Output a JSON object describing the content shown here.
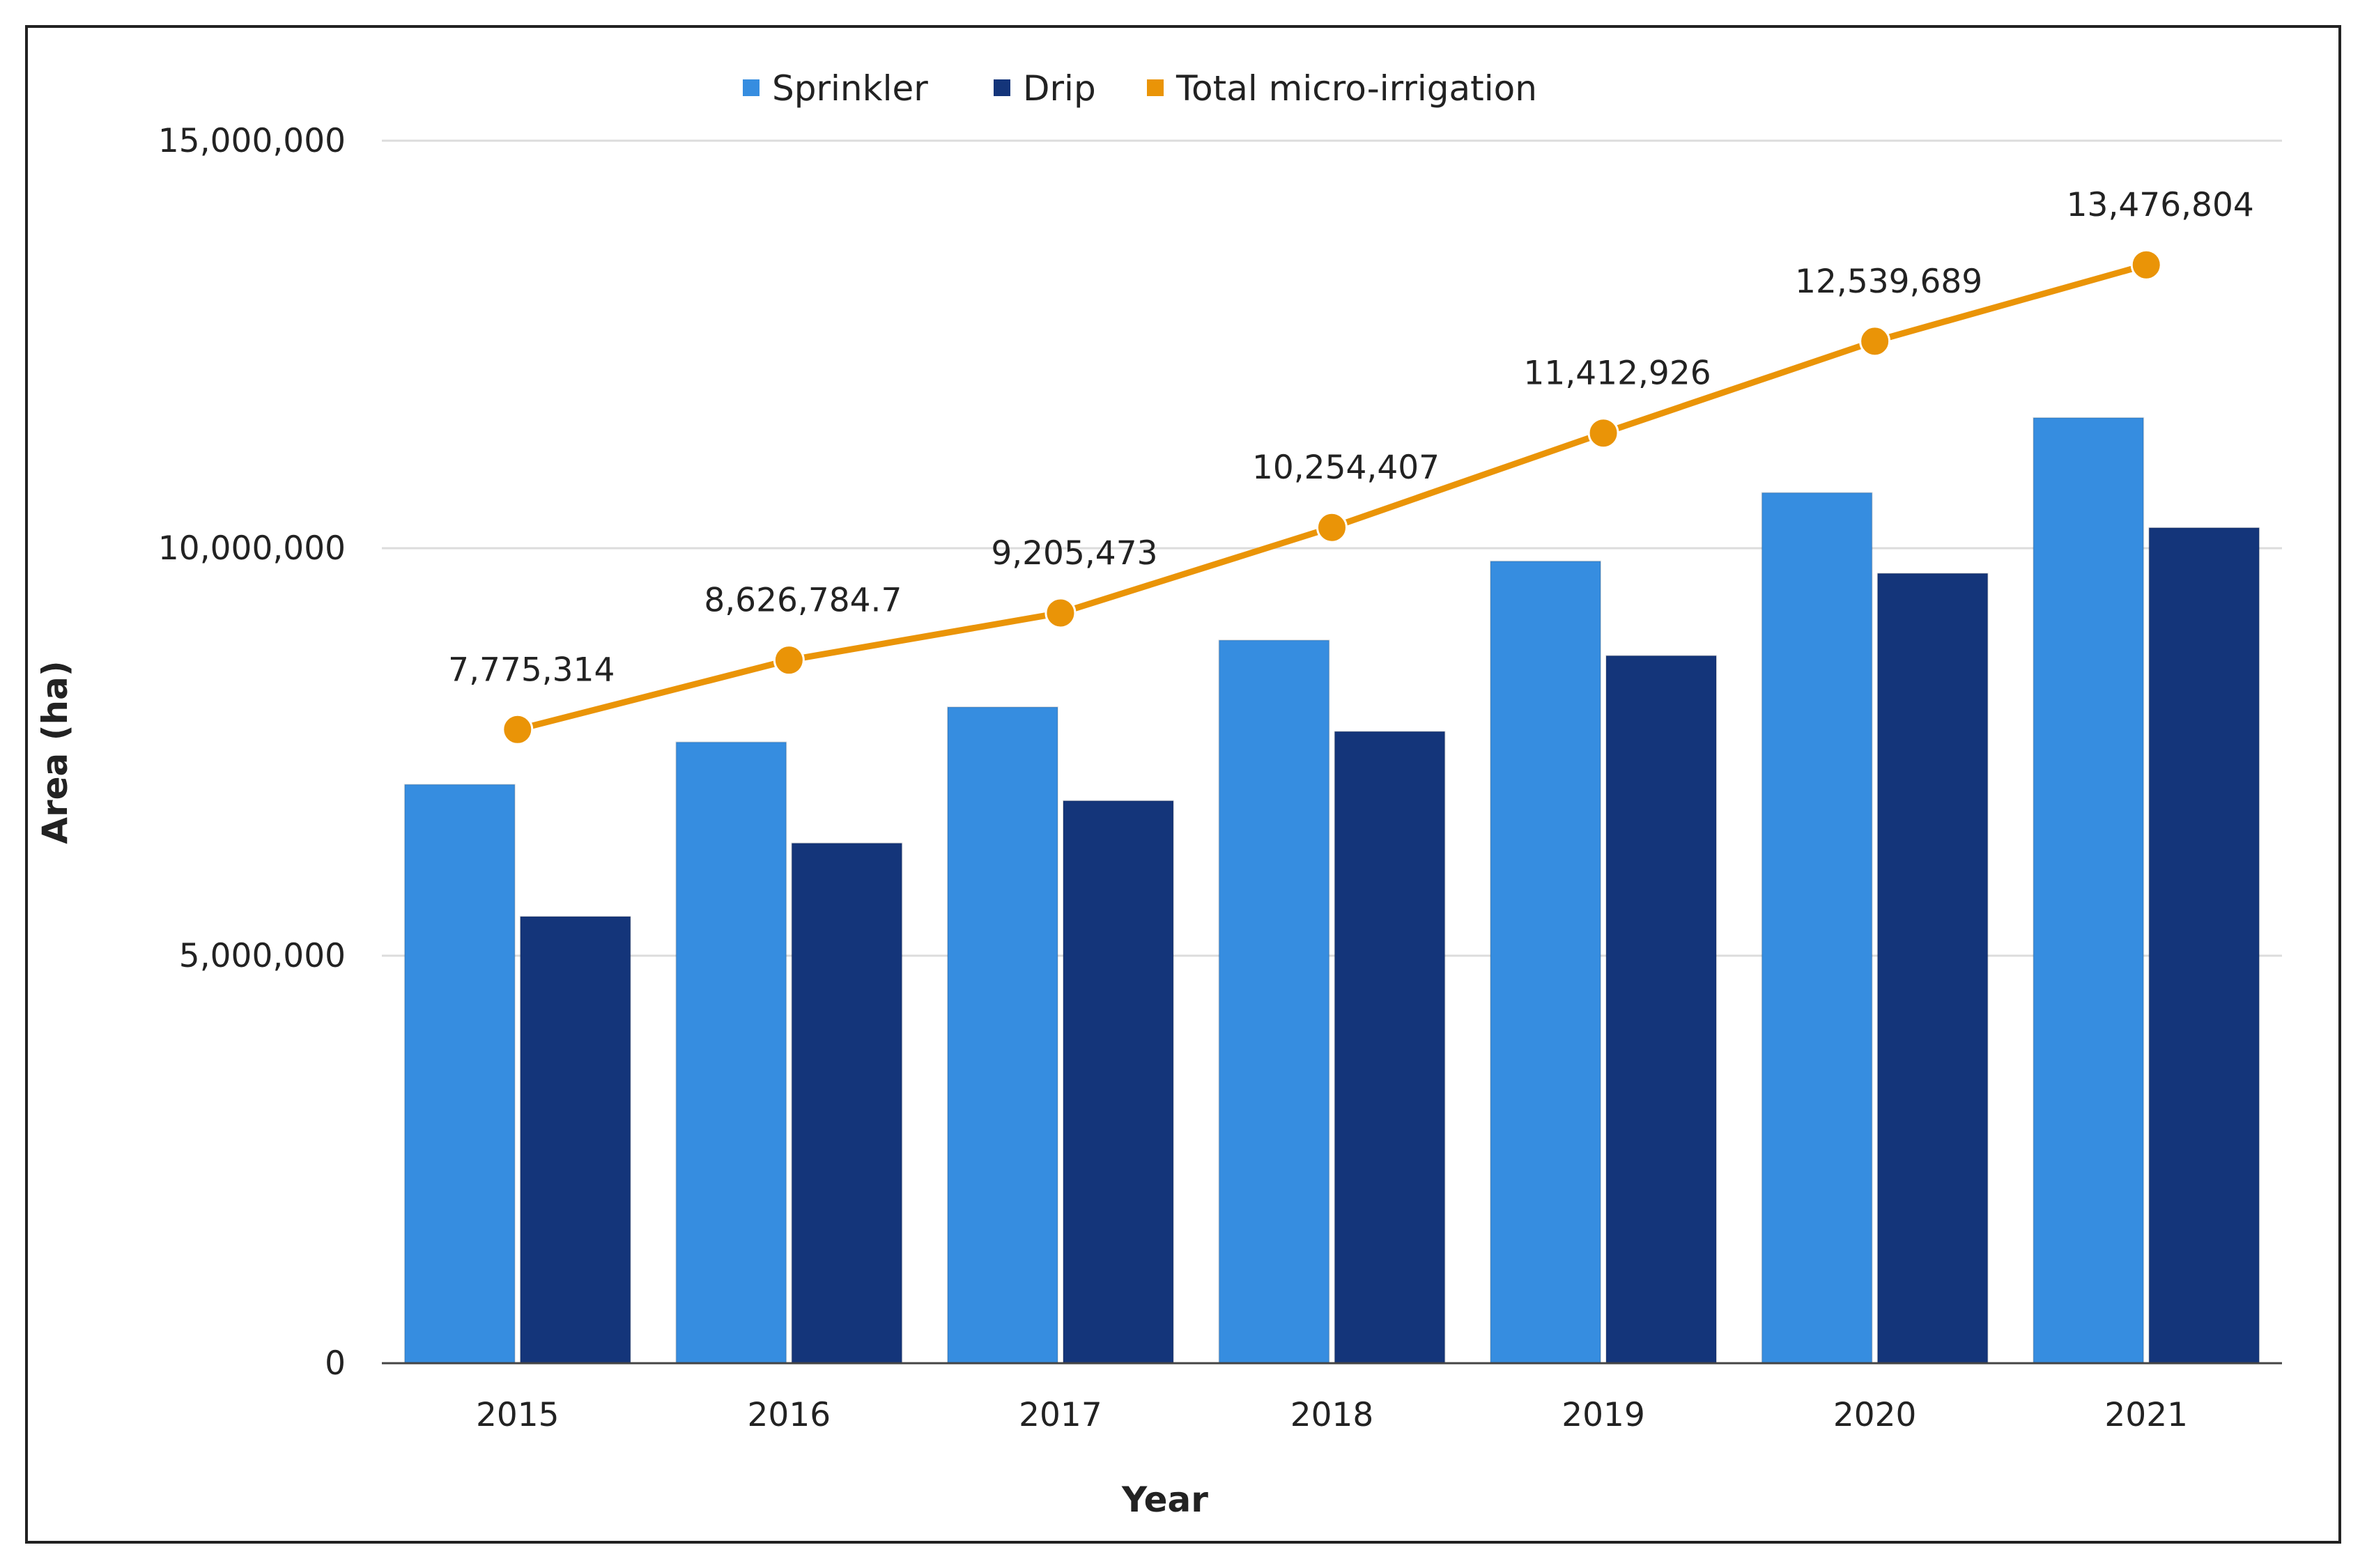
{
  "colors": {
    "sprinkler": "#368de0",
    "drip": "#14357a",
    "total": "#ea9407",
    "grid": "#dcdcdc",
    "axis": "#444444",
    "frame": "#222222"
  },
  "chart_data": {
    "type": "bar",
    "xlabel": "Year",
    "ylabel": "Area (ha)",
    "categories": [
      "2015",
      "2016",
      "2017",
      "2018",
      "2019",
      "2020",
      "2021"
    ],
    "ylim": [
      0,
      15000000
    ],
    "yticks": [
      0,
      5000000,
      10000000,
      15000000
    ],
    "ytick_labels": [
      "0",
      "5,000,000",
      "10,000,000",
      "15,000,000"
    ],
    "grid": true,
    "legend_position": "top-center",
    "series": [
      {
        "name": "Sprinkler",
        "type": "bar",
        "color_key": "sprinkler",
        "values": [
          7100000,
          7620000,
          8050000,
          8870000,
          9840000,
          10680000,
          11600000
        ]
      },
      {
        "name": "Drip",
        "type": "bar",
        "color_key": "drip",
        "values": [
          5480000,
          6380000,
          6900000,
          7750000,
          8680000,
          9690000,
          10250000
        ]
      },
      {
        "name": "Total micro-irrigation",
        "type": "line",
        "color_key": "total",
        "values": [
          7775314,
          8626784.7,
          9205473,
          10254407,
          11412926,
          12539689,
          13476804
        ],
        "labels": [
          "7,775,314",
          "8,626,784.7",
          "9,205,473",
          "10,254,407",
          "11,412,926",
          "12,539,689",
          "13,476,804"
        ]
      }
    ]
  }
}
